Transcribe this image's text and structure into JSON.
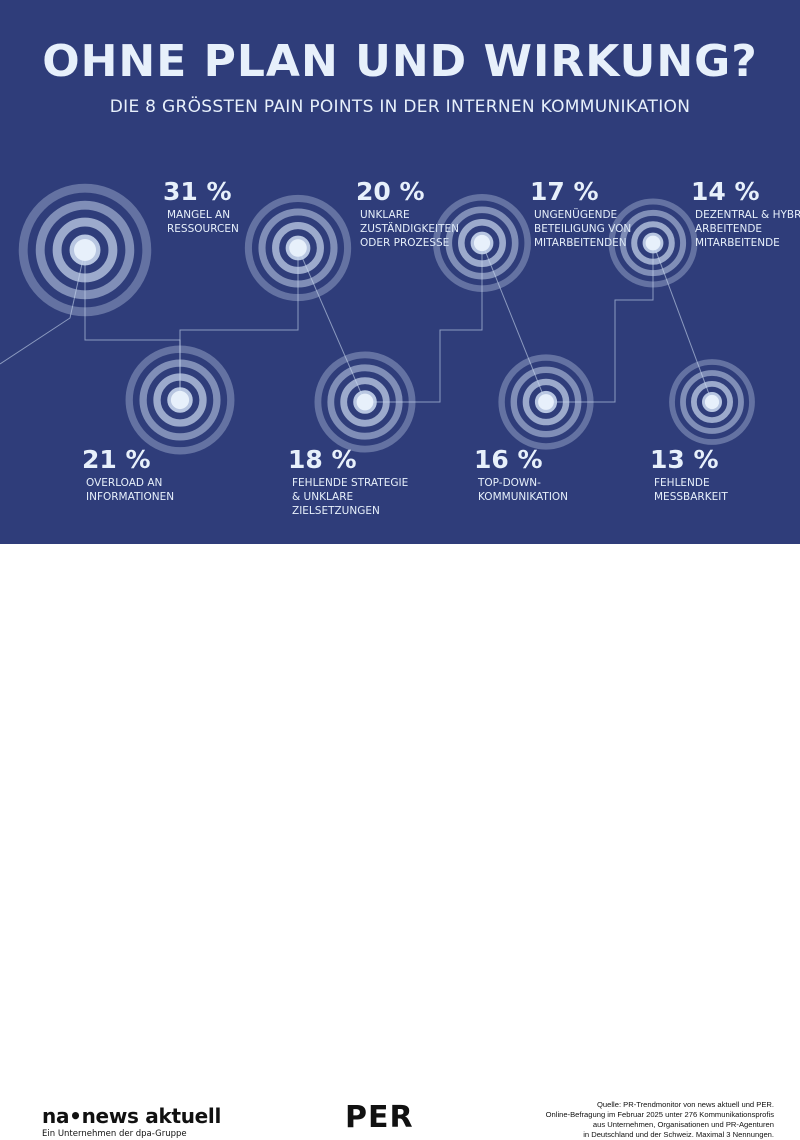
{
  "header": {
    "title": "OHNE PLAN UND WIRKUNG?",
    "subtitle": "DIE 8 GRÖSSTEN PAIN POINTS IN DER INTERNEN KOMMUNIKATION"
  },
  "colors": {
    "background": "#2f3d7a",
    "ring": "#c9d8ee",
    "text": "#e7f0fb"
  },
  "chart_data": {
    "type": "bubble",
    "title": "OHNE PLAN UND WIRKUNG?",
    "subtitle": "DIE 8 GRÖSSTEN PAIN POINTS IN DER INTERNEN KOMMUNIKATION",
    "unit": "%",
    "points": [
      {
        "value": 31,
        "label": "31 %",
        "lines": [
          "MANGEL AN",
          "RESSOURCEN"
        ]
      },
      {
        "value": 21,
        "label": "21 %",
        "lines": [
          "OVERLOAD AN",
          "INFORMATIONEN"
        ]
      },
      {
        "value": 20,
        "label": "20 %",
        "lines": [
          "UNKLARE",
          "ZUSTÄNDIGKEITEN",
          "ODER PROZESSE"
        ]
      },
      {
        "value": 18,
        "label": "18 %",
        "lines": [
          "FEHLENDE STRATEGIE",
          "& UNKLARE",
          "ZIELSETZUNGEN"
        ]
      },
      {
        "value": 17,
        "label": "17 %",
        "lines": [
          "UNGENÜGENDE",
          "BETEILIGUNG VON",
          "MITARBEITENDEN"
        ]
      },
      {
        "value": 16,
        "label": "16 %",
        "lines": [
          "TOP-DOWN-",
          "KOMMUNIKATION"
        ]
      },
      {
        "value": 14,
        "label": "14 %",
        "lines": [
          "DEZENTRAL & HYBRID",
          "ARBEITENDE",
          "MITARBEITENDE"
        ]
      },
      {
        "value": 13,
        "label": "13 %",
        "lines": [
          "FEHLENDE",
          "MESSBARKEIT"
        ]
      }
    ]
  },
  "footer": {
    "logo_news": "na•news aktuell",
    "logo_news_sub": "Ein Unternehmen der dpa-Gruppe",
    "logo_per": "PER",
    "source_lines": [
      "Quelle: PR-Trendmonitor von news aktuell und PER.",
      "Online-Befragung im Februar 2025 unter 276 Kommunikationsprofis",
      "aus Unternehmen, Organisationen und PR-Agenturen",
      "in Deutschland und der Schweiz. Maximal 3 Nennungen."
    ]
  }
}
